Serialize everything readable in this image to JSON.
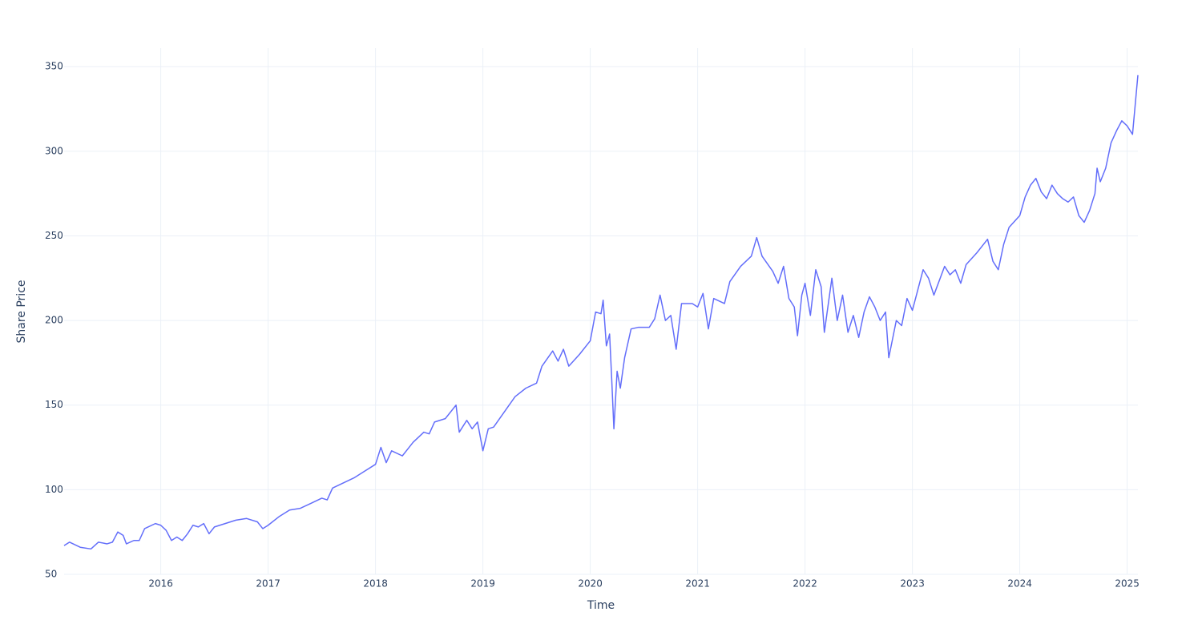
{
  "chart_data": {
    "type": "line",
    "x_label": "Time",
    "y_label": "Share Price",
    "color": "#636efa",
    "grid": true,
    "xlim": [
      2015.1,
      2025.1
    ],
    "xticks": [
      2016,
      2017,
      2018,
      2019,
      2020,
      2021,
      2022,
      2023,
      2024,
      2025
    ],
    "ylim": [
      50,
      361
    ],
    "yticks": [
      50,
      100,
      150,
      200,
      250,
      300,
      350
    ],
    "x": [
      2015.1,
      2015.15,
      2015.25,
      2015.35,
      2015.42,
      2015.5,
      2015.55,
      2015.6,
      2015.65,
      2015.68,
      2015.75,
      2015.8,
      2015.85,
      2015.95,
      2016.0,
      2016.05,
      2016.1,
      2016.15,
      2016.2,
      2016.25,
      2016.3,
      2016.35,
      2016.4,
      2016.45,
      2016.5,
      2016.6,
      2016.7,
      2016.8,
      2016.9,
      2016.95,
      2017.0,
      2017.1,
      2017.2,
      2017.3,
      2017.4,
      2017.5,
      2017.55,
      2017.6,
      2017.7,
      2017.8,
      2017.9,
      2018.0,
      2018.05,
      2018.1,
      2018.15,
      2018.25,
      2018.35,
      2018.45,
      2018.5,
      2018.55,
      2018.65,
      2018.75,
      2018.78,
      2018.85,
      2018.9,
      2018.95,
      2019.0,
      2019.05,
      2019.1,
      2019.2,
      2019.3,
      2019.4,
      2019.5,
      2019.55,
      2019.65,
      2019.7,
      2019.75,
      2019.8,
      2019.9,
      2020.0,
      2020.05,
      2020.1,
      2020.12,
      2020.15,
      2020.18,
      2020.2,
      2020.22,
      2020.25,
      2020.28,
      2020.32,
      2020.38,
      2020.45,
      2020.55,
      2020.6,
      2020.65,
      2020.7,
      2020.75,
      2020.8,
      2020.85,
      2020.95,
      2021.0,
      2021.05,
      2021.1,
      2021.15,
      2021.25,
      2021.3,
      2021.4,
      2021.5,
      2021.55,
      2021.6,
      2021.7,
      2021.75,
      2021.8,
      2021.85,
      2021.9,
      2021.93,
      2021.97,
      2022.0,
      2022.05,
      2022.1,
      2022.15,
      2022.18,
      2022.25,
      2022.3,
      2022.35,
      2022.4,
      2022.45,
      2022.5,
      2022.55,
      2022.6,
      2022.65,
      2022.7,
      2022.75,
      2022.78,
      2022.85,
      2022.9,
      2022.95,
      2023.0,
      2023.05,
      2023.1,
      2023.15,
      2023.2,
      2023.3,
      2023.35,
      2023.4,
      2023.45,
      2023.5,
      2023.6,
      2023.7,
      2023.75,
      2023.8,
      2023.85,
      2023.9,
      2024.0,
      2024.05,
      2024.1,
      2024.15,
      2024.2,
      2024.25,
      2024.3,
      2024.35,
      2024.4,
      2024.45,
      2024.5,
      2024.55,
      2024.6,
      2024.65,
      2024.7,
      2024.72,
      2024.75,
      2024.8,
      2024.85,
      2024.9,
      2024.95,
      2025.0,
      2025.05,
      2025.1
    ],
    "values": [
      67,
      69,
      66,
      65,
      69,
      68,
      69,
      75,
      73,
      68,
      70,
      70,
      77,
      80,
      79,
      76,
      70,
      72,
      70,
      74,
      79,
      78,
      80,
      74,
      78,
      80,
      82,
      83,
      81,
      77,
      79,
      84,
      88,
      89,
      92,
      95,
      94,
      101,
      104,
      107,
      111,
      115,
      125,
      116,
      123,
      120,
      128,
      134,
      133,
      140,
      142,
      150,
      134,
      141,
      136,
      140,
      123,
      136,
      137,
      146,
      155,
      160,
      163,
      173,
      182,
      176,
      183,
      173,
      180,
      188,
      205,
      204,
      212,
      185,
      192,
      165,
      136,
      170,
      160,
      178,
      195,
      196,
      196,
      201,
      215,
      200,
      203,
      183,
      210,
      210,
      208,
      216,
      195,
      213,
      210,
      223,
      232,
      238,
      249,
      238,
      229,
      222,
      232,
      213,
      208,
      191,
      215,
      222,
      203,
      230,
      220,
      193,
      225,
      200,
      215,
      193,
      203,
      190,
      205,
      214,
      208,
      200,
      205,
      178,
      200,
      197,
      213,
      206,
      218,
      230,
      225,
      215,
      232,
      227,
      230,
      222,
      233,
      240,
      248,
      235,
      230,
      245,
      255,
      262,
      273,
      280,
      284,
      276,
      272,
      280,
      275,
      272,
      270,
      273,
      262,
      258,
      265,
      275,
      290,
      282,
      290,
      305,
      312,
      318,
      315,
      310,
      345
    ]
  }
}
